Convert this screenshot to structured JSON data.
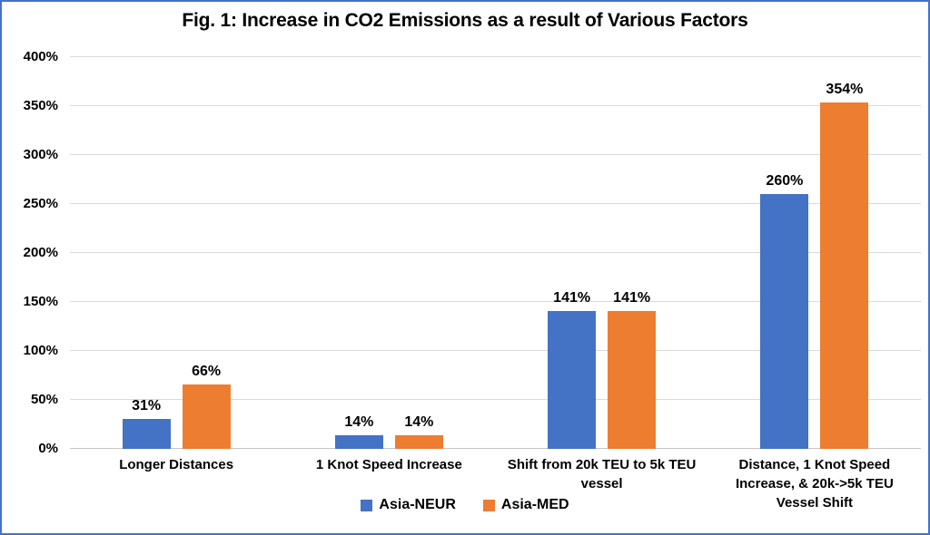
{
  "chart_data": {
    "type": "bar",
    "title": "Fig. 1: Increase in CO2 Emissions as a result of Various Factors",
    "categories": [
      "Longer Distances",
      "1 Knot Speed Increase",
      "Shift from 20k TEU to 5k TEU vessel",
      "Distance, 1 Knot Speed Increase, & 20k->5k TEU Vessel Shift"
    ],
    "series": [
      {
        "name": "Asia-NEUR",
        "color": "#4472C4",
        "values": [
          31,
          14,
          141,
          260
        ],
        "labels": [
          "31%",
          "14%",
          "141%",
          "260%"
        ]
      },
      {
        "name": "Asia-MED",
        "color": "#ED7D31",
        "values": [
          66,
          14,
          141,
          354
        ],
        "labels": [
          "66%",
          "14%",
          "141%",
          "354%"
        ]
      }
    ],
    "xlabel": "",
    "ylabel": "",
    "ylim": [
      0,
      400
    ],
    "ytick_interval": 50,
    "ytick_labels": [
      "0%",
      "50%",
      "100%",
      "150%",
      "200%",
      "250%",
      "300%",
      "350%",
      "400%"
    ],
    "grid": true,
    "data_labels": true,
    "legend_position": "bottom"
  },
  "colors": {
    "series_blue": "#4472C4",
    "series_orange": "#ED7D31",
    "frame_border": "#4472C4",
    "gridline": "#D9D9D9",
    "axis_line": "#C6C6C6",
    "text": "#000000",
    "background": "#FFFFFF"
  }
}
